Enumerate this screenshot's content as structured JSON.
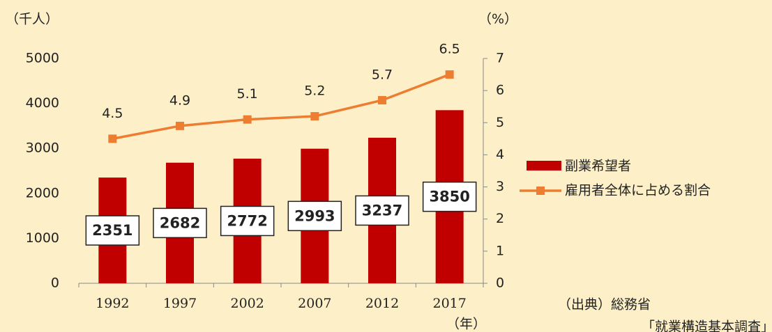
{
  "chart_data": {
    "type": "bar_line",
    "y_label": "（千人）",
    "y2_label": "（%）",
    "x_label": "（年）",
    "categories": [
      "1992",
      "1997",
      "2002",
      "2007",
      "2012",
      "2017"
    ],
    "series": [
      {
        "name": "副業希望者",
        "color": "#c00000",
        "type": "bar",
        "values": [
          2351,
          2682,
          2772,
          2993,
          3237,
          3850
        ]
      },
      {
        "name": "雇用者全体に占める割合",
        "color": "#ed7d31",
        "type": "line",
        "axis": "y2",
        "values": [
          4.5,
          4.9,
          5.1,
          5.2,
          5.7,
          6.5
        ]
      }
    ],
    "ylim": [
      0,
      5000
    ],
    "yticks": [
      0,
      1000,
      2000,
      3000,
      4000,
      5000
    ],
    "y2lim": [
      0,
      7
    ],
    "y2ticks": [
      0,
      1,
      2,
      3,
      4,
      5,
      6,
      7
    ],
    "source": [
      "（出典）総務省",
      "「就業構造基本調査」"
    ]
  }
}
